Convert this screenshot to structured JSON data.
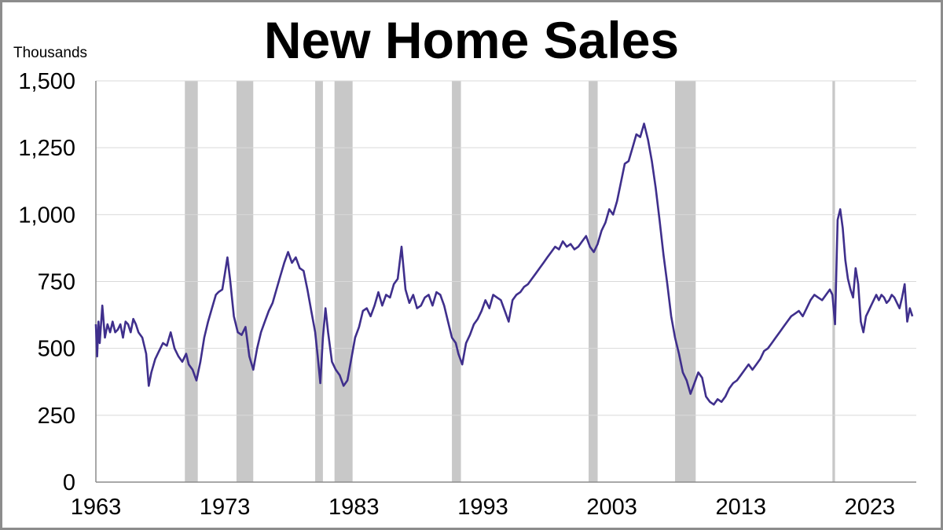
{
  "chart_data": {
    "type": "line",
    "title": "New Home Sales",
    "ylabel": "Thousands",
    "xlabel": "",
    "xlim": [
      1963,
      2026.6
    ],
    "ylim": [
      0,
      1500
    ],
    "yticks": [
      0,
      250,
      500,
      750,
      1000,
      1250,
      1500
    ],
    "ytick_labels": [
      "0",
      "250",
      "500",
      "750",
      "1,000",
      "1,250",
      "1,500"
    ],
    "xticks": [
      1963,
      1973,
      1983,
      1993,
      2003,
      2013,
      2023
    ],
    "xtick_labels": [
      "1963",
      "1973",
      "1983",
      "1993",
      "2003",
      "2013",
      "2023"
    ],
    "grid": true,
    "legend": "none",
    "colors": {
      "line": "#3f2f8c",
      "recession": "#c8c8c8",
      "grid": "#d9d9d9",
      "axis": "#8c8c8c",
      "frame": "#8c8c8c"
    },
    "recessions": [
      [
        1969.9,
        1970.9
      ],
      [
        1973.9,
        1975.2
      ],
      [
        1980.0,
        1980.6
      ],
      [
        1981.5,
        1982.9
      ],
      [
        1990.6,
        1991.3
      ],
      [
        2001.2,
        2001.9
      ],
      [
        2007.9,
        2009.5
      ],
      [
        2020.1,
        2020.3
      ]
    ],
    "series": [
      {
        "x": [
          1963.0,
          1963.1,
          1963.2,
          1963.3,
          1963.5,
          1963.7,
          1963.9,
          1964.1,
          1964.3,
          1964.5,
          1964.7,
          1964.9,
          1965.1,
          1965.3,
          1965.5,
          1965.7,
          1965.9,
          1966.1,
          1966.3,
          1966.6,
          1966.9,
          1967.1,
          1967.3,
          1967.6,
          1967.9,
          1968.2,
          1968.5,
          1968.8,
          1969.1,
          1969.4,
          1969.7,
          1970.0,
          1970.2,
          1970.5,
          1970.8,
          1971.1,
          1971.4,
          1971.7,
          1972.0,
          1972.3,
          1972.5,
          1972.8,
          1973.0,
          1973.2,
          1973.4,
          1973.7,
          1974.0,
          1974.3,
          1974.6,
          1974.9,
          1975.2,
          1975.5,
          1975.8,
          1976.1,
          1976.4,
          1976.7,
          1977.0,
          1977.3,
          1977.6,
          1977.9,
          1978.2,
          1978.5,
          1978.8,
          1979.1,
          1979.4,
          1979.7,
          1980.0,
          1980.2,
          1980.4,
          1980.6,
          1980.8,
          1981.0,
          1981.3,
          1981.6,
          1981.9,
          1982.2,
          1982.5,
          1982.8,
          1983.1,
          1983.4,
          1983.7,
          1984.0,
          1984.3,
          1984.6,
          1984.9,
          1985.2,
          1985.5,
          1985.8,
          1986.1,
          1986.4,
          1986.7,
          1987.0,
          1987.3,
          1987.6,
          1987.9,
          1988.2,
          1988.5,
          1988.8,
          1989.1,
          1989.4,
          1989.7,
          1990.0,
          1990.3,
          1990.6,
          1990.9,
          1991.1,
          1991.4,
          1991.7,
          1992.0,
          1992.3,
          1992.6,
          1992.9,
          1993.2,
          1993.5,
          1993.8,
          1994.1,
          1994.4,
          1994.7,
          1995.0,
          1995.3,
          1995.6,
          1995.9,
          1996.2,
          1996.5,
          1996.8,
          1997.1,
          1997.4,
          1997.7,
          1998.0,
          1998.3,
          1998.6,
          1998.9,
          1999.2,
          1999.5,
          1999.8,
          2000.1,
          2000.4,
          2000.7,
          2001.0,
          2001.3,
          2001.6,
          2001.9,
          2002.2,
          2002.5,
          2002.8,
          2003.1,
          2003.4,
          2003.7,
          2004.0,
          2004.3,
          2004.6,
          2004.9,
          2005.2,
          2005.5,
          2005.8,
          2006.1,
          2006.4,
          2006.7,
          2007.0,
          2007.3,
          2007.6,
          2007.9,
          2008.2,
          2008.5,
          2008.8,
          2009.1,
          2009.4,
          2009.7,
          2010.0,
          2010.3,
          2010.6,
          2010.9,
          2011.2,
          2011.5,
          2011.8,
          2012.1,
          2012.4,
          2012.7,
          2013.0,
          2013.3,
          2013.6,
          2013.9,
          2014.2,
          2014.5,
          2014.8,
          2015.1,
          2015.4,
          2015.7,
          2016.0,
          2016.3,
          2016.6,
          2016.9,
          2017.2,
          2017.5,
          2017.8,
          2018.1,
          2018.4,
          2018.7,
          2019.0,
          2019.3,
          2019.6,
          2019.9,
          2020.1,
          2020.3,
          2020.5,
          2020.7,
          2020.9,
          2021.1,
          2021.3,
          2021.5,
          2021.7,
          2021.9,
          2022.1,
          2022.3,
          2022.5,
          2022.7,
          2022.9,
          2023.1,
          2023.3,
          2023.5,
          2023.7,
          2023.9,
          2024.1,
          2024.3,
          2024.5,
          2024.7,
          2024.9,
          2025.1,
          2025.3,
          2025.5,
          2025.7,
          2025.9,
          2026.1,
          2026.3
        ],
        "y": [
          590,
          470,
          600,
          520,
          660,
          540,
          590,
          560,
          600,
          560,
          570,
          590,
          540,
          600,
          590,
          560,
          610,
          590,
          560,
          540,
          480,
          360,
          410,
          460,
          490,
          520,
          510,
          560,
          500,
          470,
          450,
          480,
          440,
          420,
          380,
          450,
          540,
          600,
          650,
          700,
          710,
          720,
          780,
          840,
          760,
          620,
          560,
          550,
          580,
          470,
          420,
          500,
          560,
          600,
          640,
          670,
          720,
          770,
          820,
          860,
          820,
          840,
          800,
          790,
          720,
          640,
          560,
          470,
          370,
          540,
          650,
          560,
          450,
          420,
          400,
          360,
          380,
          460,
          540,
          580,
          640,
          650,
          620,
          660,
          710,
          660,
          700,
          690,
          740,
          760,
          880,
          720,
          670,
          700,
          650,
          660,
          690,
          700,
          660,
          710,
          700,
          660,
          600,
          540,
          520,
          480,
          440,
          520,
          550,
          590,
          610,
          640,
          680,
          650,
          700,
          690,
          680,
          640,
          600,
          680,
          700,
          710,
          730,
          740,
          760,
          780,
          800,
          820,
          840,
          860,
          880,
          870,
          900,
          880,
          890,
          870,
          880,
          900,
          920,
          880,
          860,
          890,
          940,
          970,
          1020,
          1000,
          1050,
          1120,
          1190,
          1200,
          1250,
          1300,
          1290,
          1340,
          1280,
          1200,
          1100,
          980,
          850,
          740,
          620,
          540,
          480,
          410,
          380,
          330,
          370,
          410,
          390,
          320,
          300,
          290,
          310,
          300,
          320,
          350,
          370,
          380,
          400,
          420,
          440,
          420,
          440,
          460,
          490,
          500,
          520,
          540,
          560,
          580,
          600,
          620,
          630,
          640,
          620,
          650,
          680,
          700,
          690,
          680,
          700,
          720,
          700,
          590,
          980,
          1020,
          950,
          830,
          760,
          720,
          690,
          800,
          740,
          600,
          560,
          620,
          640,
          660,
          680,
          700,
          680,
          700,
          690,
          670,
          680,
          700,
          690,
          670,
          650,
          690,
          740,
          600,
          650,
          620
        ]
      }
    ]
  }
}
